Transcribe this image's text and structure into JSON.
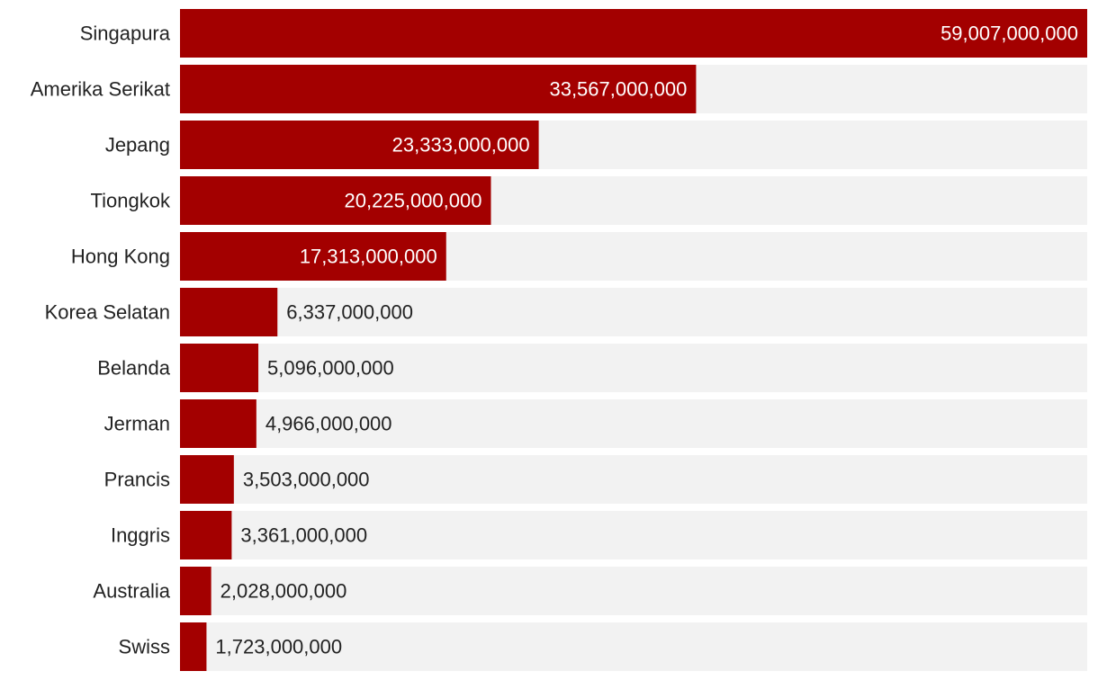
{
  "chart_data": {
    "type": "bar",
    "orientation": "horizontal",
    "title": "",
    "xlabel": "",
    "ylabel": "",
    "categories": [
      "Singapura",
      "Amerika Serikat",
      "Jepang",
      "Tiongkok",
      "Hong Kong",
      "Korea Selatan",
      "Belanda",
      "Jerman",
      "Prancis",
      "Inggris",
      "Australia",
      "Swiss"
    ],
    "values": [
      59007000000,
      33567000000,
      23333000000,
      20225000000,
      17313000000,
      6337000000,
      5096000000,
      4966000000,
      3503000000,
      3361000000,
      2028000000,
      1723000000
    ],
    "value_labels": [
      "59,007,000,000",
      "33,567,000,000",
      "23,333,000,000",
      "20,225,000,000",
      "17,313,000,000",
      "6,337,000,000",
      "5,096,000,000",
      "4,966,000,000",
      "3,503,000,000",
      "3,361,000,000",
      "2,028,000,000",
      "1,723,000,000"
    ],
    "xlim": [
      0,
      59007000000
    ],
    "grid": false,
    "legend": "none",
    "colors": {
      "bar": "#a30000",
      "track": "#f2f2f2",
      "label_inside": "#ffffff",
      "label_outside": "#222222",
      "category_text": "#222222"
    }
  }
}
